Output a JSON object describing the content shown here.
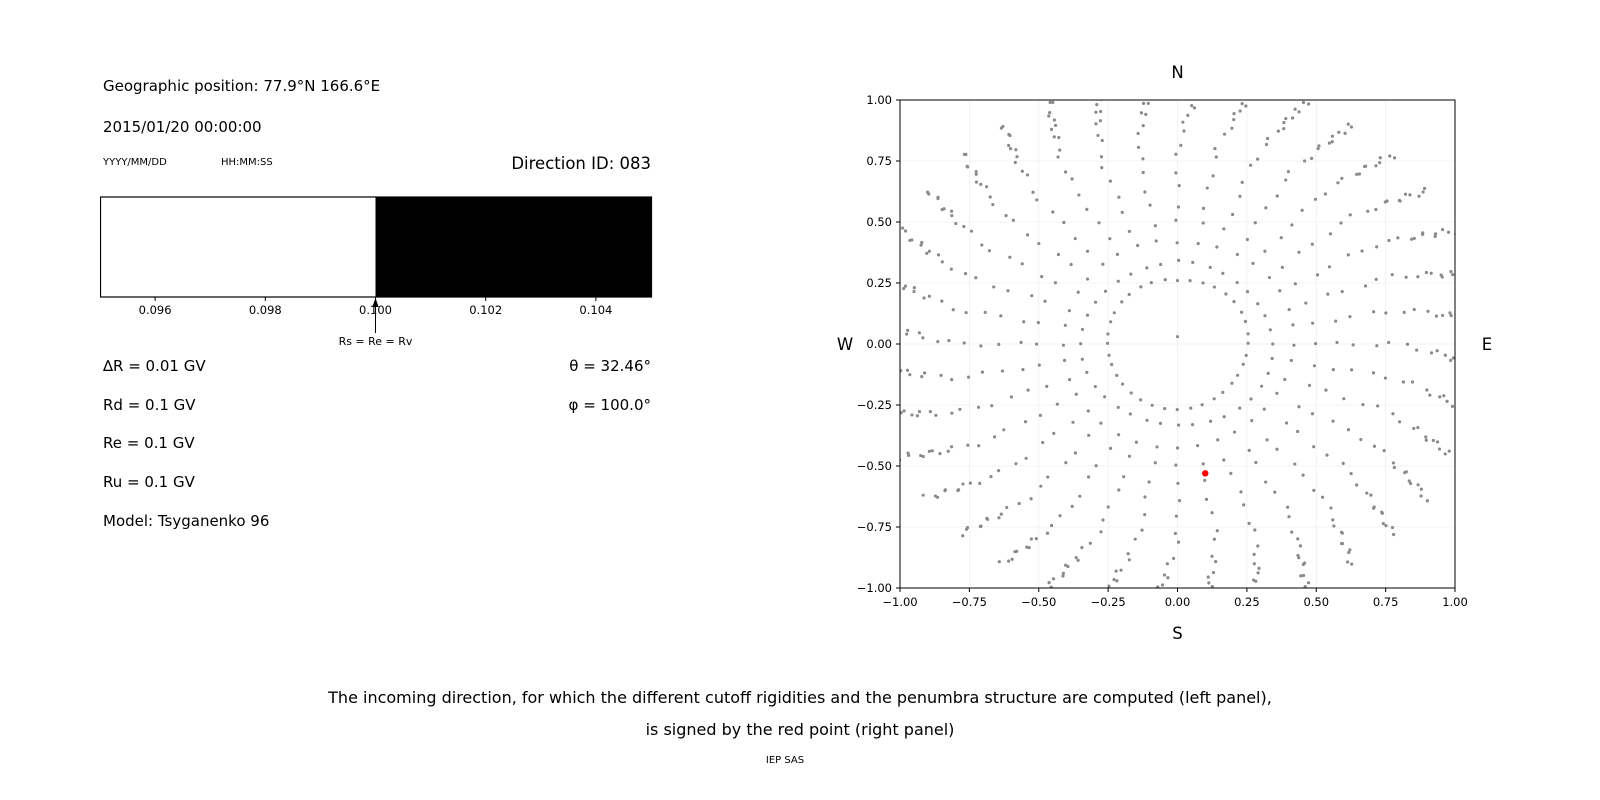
{
  "figure": {
    "background": "#ffffff",
    "dot_color": "#8a8a8a",
    "red_color": "#ff0000"
  },
  "left_panel": {
    "geo_position": "Geographic position: 77.9°N 166.6°E",
    "datetime": "2015/01/20 00:00:00",
    "date_format_label": "YYYY/MM/DD",
    "time_format_label": "HH:MM:SS",
    "direction_id_label": "Direction ID: 083",
    "params": {
      "delta_r": "∆R = 0.01 GV",
      "rd": "Rd = 0.1 GV",
      "re": "Re = 0.1 GV",
      "ru": "Ru = 0.1 GV",
      "model": "Model: Tsyganenko 96",
      "theta": "θ = 32.46°",
      "phi": "φ = 100.0°"
    }
  },
  "right_panel": {
    "labels": {
      "north": "N",
      "south": "S",
      "west": "W",
      "east": "E"
    }
  },
  "caption": {
    "line1": "The incoming direction, for which the different cutoff rigidities and the penumbra structure are computed (left panel),",
    "line2": "is signed by the red point (right panel)",
    "credit": "IEP SAS"
  },
  "chart_data": [
    {
      "type": "bar",
      "title": "penumbra structure (white = allowed, black = forbidden)",
      "xlim": [
        0.095,
        0.105
      ],
      "x_ticks": [
        0.096,
        0.098,
        0.1,
        0.102,
        0.104
      ],
      "x_tick_labels": [
        "0.096",
        "0.098",
        "0.100",
        "0.102",
        "0.104"
      ],
      "segments": [
        {
          "from": 0.095,
          "to": 0.1,
          "color": "#ffffff"
        },
        {
          "from": 0.1,
          "to": 0.105,
          "color": "#000000"
        }
      ],
      "annotation": {
        "x": 0.1,
        "label": "Rs = Re = Rv"
      },
      "border_color": "#000000"
    },
    {
      "type": "scatter",
      "title": "incoming directions grid",
      "xlim": [
        -1,
        1
      ],
      "ylim": [
        -1,
        1
      ],
      "grid": true,
      "grid_color": "#efefef",
      "x_ticks": [
        -1,
        -0.75,
        -0.5,
        -0.25,
        0,
        0.25,
        0.5,
        0.75,
        1
      ],
      "x_tick_labels": [
        "−1.00",
        "−0.75",
        "−0.50",
        "−0.25",
        "0.00",
        "0.25",
        "0.50",
        "0.75",
        "1.00"
      ],
      "y_ticks": [
        -1,
        -0.75,
        -0.5,
        -0.25,
        0,
        0.25,
        0.5,
        0.75,
        1
      ],
      "y_tick_labels": [
        "−1.00",
        "−0.75",
        "−0.50",
        "−0.25",
        "0.00",
        "0.25",
        "0.50",
        "0.75",
        "1.00"
      ],
      "direction_grid": {
        "azimuth_count": 36,
        "azimuth_step_deg": 10,
        "radii": [
          0.26,
          0.34,
          0.42,
          0.5,
          0.57,
          0.64,
          0.71,
          0.77,
          0.82,
          0.87,
          0.91,
          0.94,
          0.965,
          0.985,
          1.0,
          1.02,
          1.04,
          1.06,
          1.08,
          1.1
        ],
        "color": "#8a8a8a"
      },
      "center_point": {
        "x": 0,
        "y": 0.03
      },
      "red_point": {
        "x": 0.1,
        "y": -0.53,
        "color": "#ff0000"
      }
    }
  ]
}
